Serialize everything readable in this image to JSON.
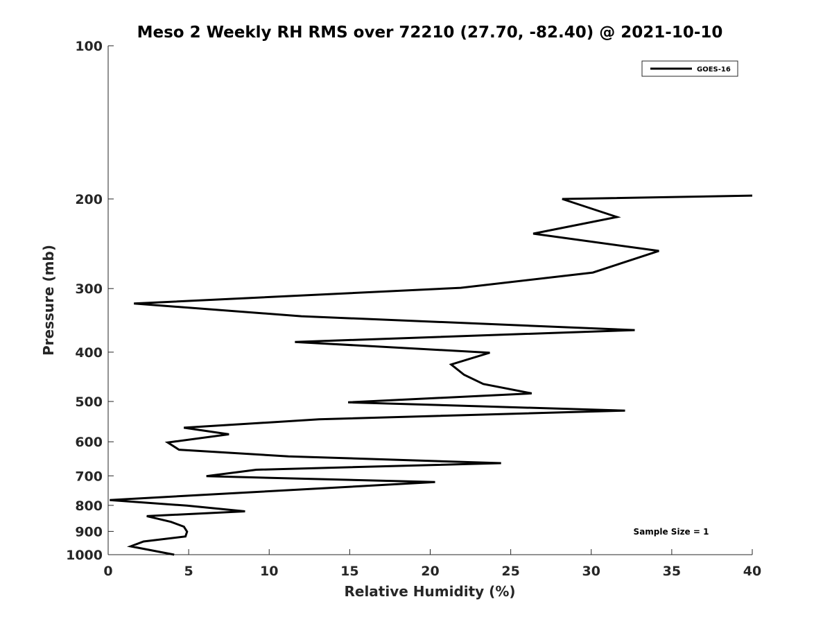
{
  "chart_data": {
    "type": "line",
    "title": "Meso 2 Weekly RH RMS over 72210 (27.70, -82.40) @ 2021-10-10",
    "xlabel": "Relative Humidity (%)",
    "ylabel": "Pressure (mb)",
    "xlim": [
      0,
      40
    ],
    "ylim": [
      100,
      1000
    ],
    "y_scale": "log",
    "y_reversed": true,
    "x_ticks": [
      0,
      5,
      10,
      15,
      20,
      25,
      30,
      35,
      40
    ],
    "y_ticks": [
      100,
      200,
      300,
      400,
      500,
      600,
      700,
      800,
      900,
      1000
    ],
    "grid": false,
    "legend_position": "top-right",
    "annotation": "Sample Size = 1",
    "series": [
      {
        "name": "GOES-16",
        "color": "#000000",
        "points": [
          {
            "x": 40.0,
            "y": 197
          },
          {
            "x": 28.2,
            "y": 200
          },
          {
            "x": 31.6,
            "y": 217
          },
          {
            "x": 26.4,
            "y": 234
          },
          {
            "x": 34.2,
            "y": 253
          },
          {
            "x": 30.1,
            "y": 279
          },
          {
            "x": 21.9,
            "y": 299
          },
          {
            "x": 1.6,
            "y": 321
          },
          {
            "x": 12.0,
            "y": 340
          },
          {
            "x": 32.7,
            "y": 362
          },
          {
            "x": 11.6,
            "y": 382
          },
          {
            "x": 23.7,
            "y": 401
          },
          {
            "x": 21.3,
            "y": 423
          },
          {
            "x": 22.1,
            "y": 443
          },
          {
            "x": 23.3,
            "y": 462
          },
          {
            "x": 26.3,
            "y": 482
          },
          {
            "x": 14.9,
            "y": 502
          },
          {
            "x": 32.1,
            "y": 521
          },
          {
            "x": 13.1,
            "y": 542
          },
          {
            "x": 4.7,
            "y": 563
          },
          {
            "x": 7.5,
            "y": 580
          },
          {
            "x": 3.7,
            "y": 602
          },
          {
            "x": 4.4,
            "y": 622
          },
          {
            "x": 11.2,
            "y": 641
          },
          {
            "x": 24.4,
            "y": 661
          },
          {
            "x": 9.2,
            "y": 681
          },
          {
            "x": 6.1,
            "y": 701
          },
          {
            "x": 20.3,
            "y": 720
          },
          {
            "x": 0.1,
            "y": 781
          },
          {
            "x": 4.9,
            "y": 801
          },
          {
            "x": 8.5,
            "y": 822
          },
          {
            "x": 2.4,
            "y": 840
          },
          {
            "x": 3.9,
            "y": 862
          },
          {
            "x": 4.7,
            "y": 881
          },
          {
            "x": 4.9,
            "y": 901
          },
          {
            "x": 4.8,
            "y": 921
          },
          {
            "x": 2.2,
            "y": 942
          },
          {
            "x": 1.4,
            "y": 963
          },
          {
            "x": 4.1,
            "y": 1000
          }
        ]
      }
    ]
  }
}
